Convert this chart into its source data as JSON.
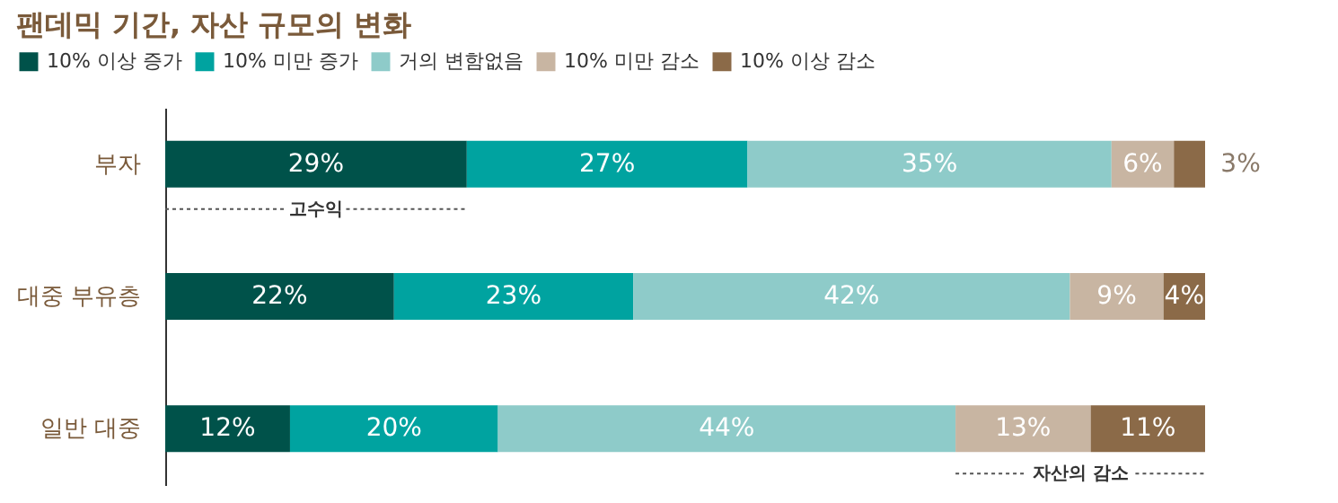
{
  "chart_data": {
    "type": "bar",
    "orientation": "horizontal",
    "stacked": true,
    "title": "팬데믹 기간, 자산 규모의 변화",
    "categories": [
      "부자",
      "대중 부유층",
      "일반 대중"
    ],
    "series": [
      {
        "name": "10% 이상 증가",
        "color": "#00524a",
        "values": [
          29,
          22,
          12
        ],
        "value_labels": [
          "29%",
          "22%",
          "12%"
        ]
      },
      {
        "name": "10% 미만 증가",
        "color": "#00a3a0",
        "values": [
          27,
          23,
          20
        ],
        "value_labels": [
          "27%",
          "23%",
          "20%"
        ]
      },
      {
        "name": "거의 변함없음",
        "color": "#8ecbc9",
        "values": [
          35,
          42,
          44
        ],
        "value_labels": [
          "35%",
          "42%",
          "44%"
        ]
      },
      {
        "name": "10% 미만 감소",
        "color": "#c8b5a2",
        "values": [
          6,
          9,
          13
        ],
        "value_labels": [
          "6%",
          "9%",
          "13%"
        ]
      },
      {
        "name": "10% 이상 감소",
        "color": "#8b6a48",
        "values": [
          3,
          4,
          11
        ],
        "value_labels": [
          "3%",
          "4%",
          "11%"
        ]
      }
    ],
    "annotations": [
      "고수익",
      "자산의 감소"
    ],
    "legend": "top left",
    "grid": false
  }
}
